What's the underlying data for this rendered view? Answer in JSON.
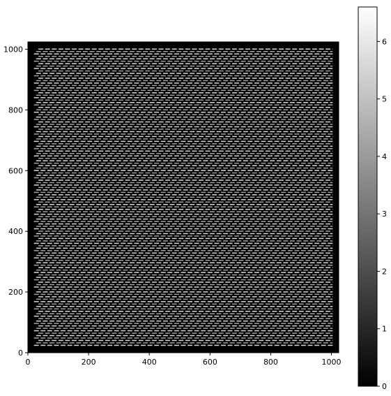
{
  "chart_data": {
    "type": "heatmap",
    "title": "",
    "xlabel": "",
    "ylabel": "",
    "xlim": [
      0,
      1024
    ],
    "ylim": [
      0,
      1024
    ],
    "x_ticks": [
      0,
      200,
      400,
      600,
      800,
      1000
    ],
    "x_tick_labels": [
      "0",
      "200",
      "400",
      "600",
      "800",
      "1000"
    ],
    "y_ticks": [
      0,
      200,
      400,
      600,
      800,
      1000
    ],
    "y_tick_labels": [
      "0",
      "200",
      "400",
      "600",
      "800",
      "1000"
    ],
    "border_value": 0,
    "pattern": {
      "description_axis": "interior region of dashes",
      "interior_x_range": [
        20,
        1004
      ],
      "interior_y_range": [
        20,
        1004
      ],
      "row_spacing": 8,
      "dash_length": 16,
      "dash_gap": 6,
      "dash_value_high": 5.5,
      "dash_value_low": 4.2,
      "background_value": 0
    },
    "colormap": "gray",
    "colorbar": {
      "vmin": 0,
      "vmax": 6.6,
      "ticks": [
        0,
        1,
        2,
        3,
        4,
        5,
        6
      ],
      "tick_labels": [
        "0",
        "1",
        "2",
        "3",
        "4",
        "5",
        "6"
      ]
    }
  }
}
